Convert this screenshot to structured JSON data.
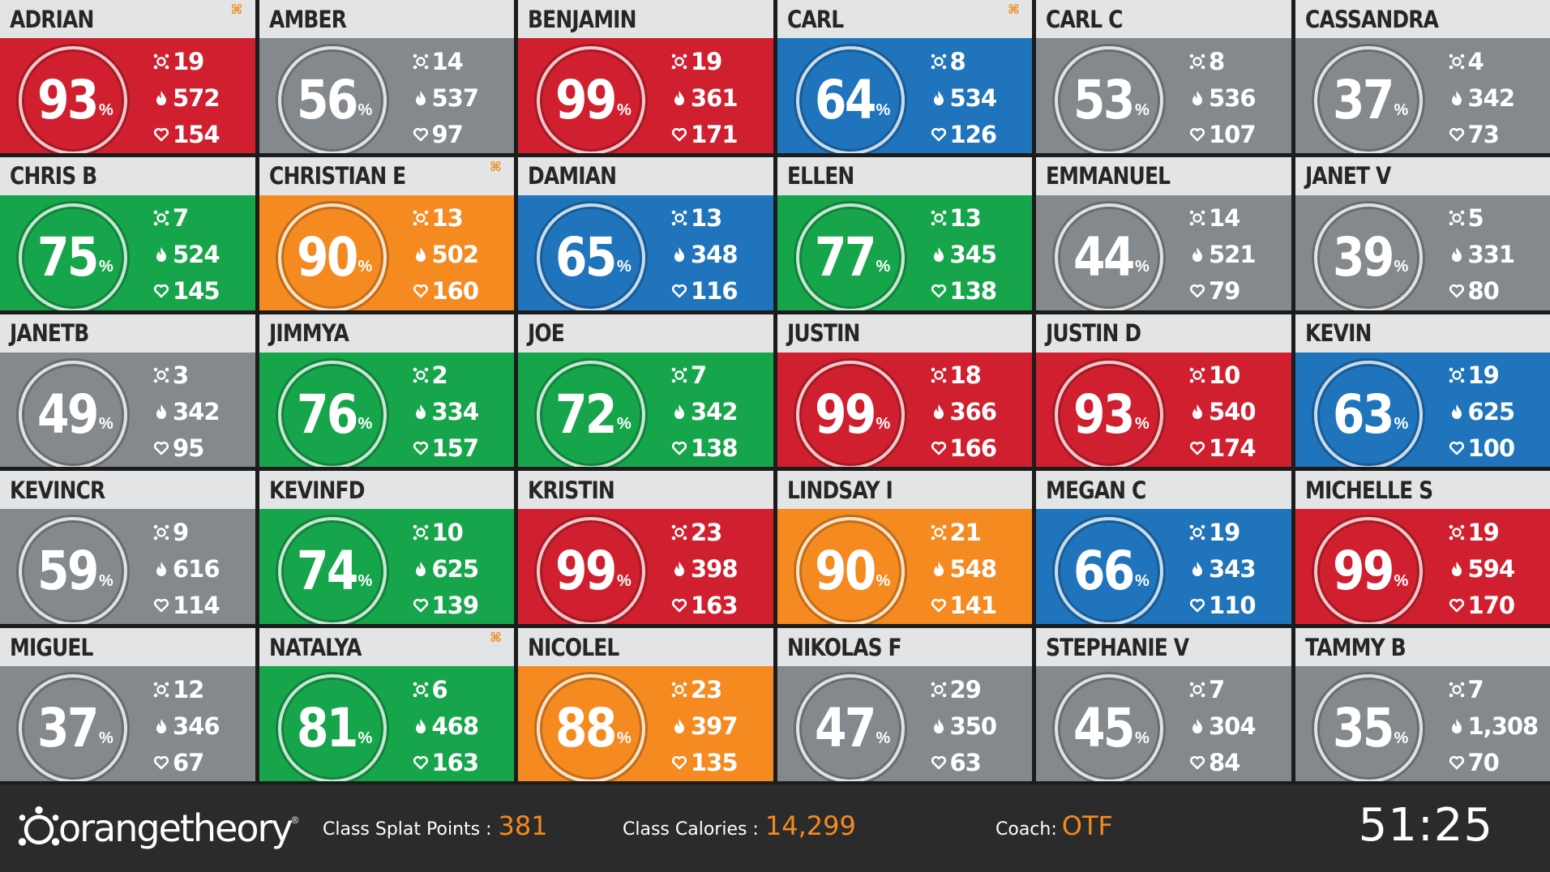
{
  "participants": [
    {
      "name": "ADRIAN",
      "percent": "93",
      "color": "red",
      "splat_icon": true,
      "splat": "19",
      "calories": "572",
      "avg_hr": "154"
    },
    {
      "name": "AMBER",
      "percent": "56",
      "color": "gray",
      "splat_icon": false,
      "splat": "14",
      "calories": "537",
      "avg_hr": "97"
    },
    {
      "name": "BENJAMIN",
      "percent": "99",
      "color": "red",
      "splat_icon": false,
      "splat": "19",
      "calories": "361",
      "avg_hr": "171"
    },
    {
      "name": "CARL",
      "percent": "64",
      "color": "blue",
      "splat_icon": true,
      "splat": "8",
      "calories": "534",
      "avg_hr": "126"
    },
    {
      "name": "CARL C",
      "percent": "53",
      "color": "gray",
      "splat_icon": false,
      "splat": "8",
      "calories": "536",
      "avg_hr": "107"
    },
    {
      "name": "CASSANDRA",
      "percent": "37",
      "color": "gray",
      "splat_icon": false,
      "splat": "4",
      "calories": "342",
      "avg_hr": "73"
    },
    {
      "name": "CHRIS B",
      "percent": "75",
      "color": "green",
      "splat_icon": false,
      "splat": "7",
      "calories": "524",
      "avg_hr": "145"
    },
    {
      "name": "CHRISTIAN E",
      "percent": "90",
      "color": "orange",
      "splat_icon": true,
      "splat": "13",
      "calories": "502",
      "avg_hr": "160"
    },
    {
      "name": "DAMIAN",
      "percent": "65",
      "color": "blue",
      "splat_icon": false,
      "splat": "13",
      "calories": "348",
      "avg_hr": "116"
    },
    {
      "name": "ELLEN",
      "percent": "77",
      "color": "green",
      "splat_icon": false,
      "splat": "13",
      "calories": "345",
      "avg_hr": "138"
    },
    {
      "name": "EMMANUEL",
      "percent": "44",
      "color": "gray",
      "splat_icon": false,
      "splat": "14",
      "calories": "521",
      "avg_hr": "79"
    },
    {
      "name": "JANET V",
      "percent": "39",
      "color": "gray",
      "splat_icon": false,
      "splat": "5",
      "calories": "331",
      "avg_hr": "80"
    },
    {
      "name": "JANETB",
      "percent": "49",
      "color": "gray",
      "splat_icon": false,
      "splat": "3",
      "calories": "342",
      "avg_hr": "95"
    },
    {
      "name": "JIMMYA",
      "percent": "76",
      "color": "green",
      "splat_icon": false,
      "splat": "2",
      "calories": "334",
      "avg_hr": "157"
    },
    {
      "name": "JOE",
      "percent": "72",
      "color": "green",
      "splat_icon": false,
      "splat": "7",
      "calories": "342",
      "avg_hr": "138"
    },
    {
      "name": "JUSTIN",
      "percent": "99",
      "color": "red",
      "splat_icon": false,
      "splat": "18",
      "calories": "366",
      "avg_hr": "166"
    },
    {
      "name": "JUSTIN D",
      "percent": "93",
      "color": "red",
      "splat_icon": false,
      "splat": "10",
      "calories": "540",
      "avg_hr": "174"
    },
    {
      "name": "KEVIN",
      "percent": "63",
      "color": "blue",
      "splat_icon": false,
      "splat": "19",
      "calories": "625",
      "avg_hr": "100"
    },
    {
      "name": "KEVINCR",
      "percent": "59",
      "color": "gray",
      "splat_icon": false,
      "splat": "9",
      "calories": "616",
      "avg_hr": "114"
    },
    {
      "name": "KEVINFD",
      "percent": "74",
      "color": "green",
      "splat_icon": false,
      "splat": "10",
      "calories": "625",
      "avg_hr": "139"
    },
    {
      "name": "KRISTIN",
      "percent": "99",
      "color": "red",
      "splat_icon": false,
      "splat": "23",
      "calories": "398",
      "avg_hr": "163"
    },
    {
      "name": "LINDSAY I",
      "percent": "90",
      "color": "orange",
      "splat_icon": false,
      "splat": "21",
      "calories": "548",
      "avg_hr": "141"
    },
    {
      "name": "MEGAN C",
      "percent": "66",
      "color": "blue",
      "splat_icon": false,
      "splat": "19",
      "calories": "343",
      "avg_hr": "110"
    },
    {
      "name": "MICHELLE S",
      "percent": "99",
      "color": "red",
      "splat_icon": false,
      "splat": "19",
      "calories": "594",
      "avg_hr": "170"
    },
    {
      "name": "MIGUEL",
      "percent": "37",
      "color": "gray",
      "splat_icon": false,
      "splat": "12",
      "calories": "346",
      "avg_hr": "67"
    },
    {
      "name": "NATALYA",
      "percent": "81",
      "color": "green",
      "splat_icon": true,
      "splat": "6",
      "calories": "468",
      "avg_hr": "163"
    },
    {
      "name": "NICOLEL",
      "percent": "88",
      "color": "orange",
      "splat_icon": false,
      "splat": "23",
      "calories": "397",
      "avg_hr": "135"
    },
    {
      "name": "NIKOLAS F",
      "percent": "47",
      "color": "gray",
      "splat_icon": false,
      "splat": "29",
      "calories": "350",
      "avg_hr": "63"
    },
    {
      "name": "STEPHANIE V",
      "percent": "45",
      "color": "gray",
      "splat_icon": false,
      "splat": "7",
      "calories": "304",
      "avg_hr": "84"
    },
    {
      "name": "TAMMY B",
      "percent": "35",
      "color": "gray",
      "splat_icon": false,
      "splat": "7",
      "calories": "1,308",
      "avg_hr": "70"
    }
  ],
  "percent_unit": "%",
  "footer": {
    "logo_text": "orangetheory",
    "logo_mark": "®",
    "splat_label": "Class Splat Points :",
    "splat_value": "381",
    "calories_label": "Class Calories :",
    "calories_value": "14,299",
    "coach_label": "Coach:",
    "coach_value": "OTF",
    "timer": "51:25"
  },
  "colors": {
    "red": "#d0202f",
    "gray": "#83898c",
    "blue": "#1f74bb",
    "green": "#17a54b",
    "orange": "#f48a20",
    "accent": "#f58a1f"
  }
}
